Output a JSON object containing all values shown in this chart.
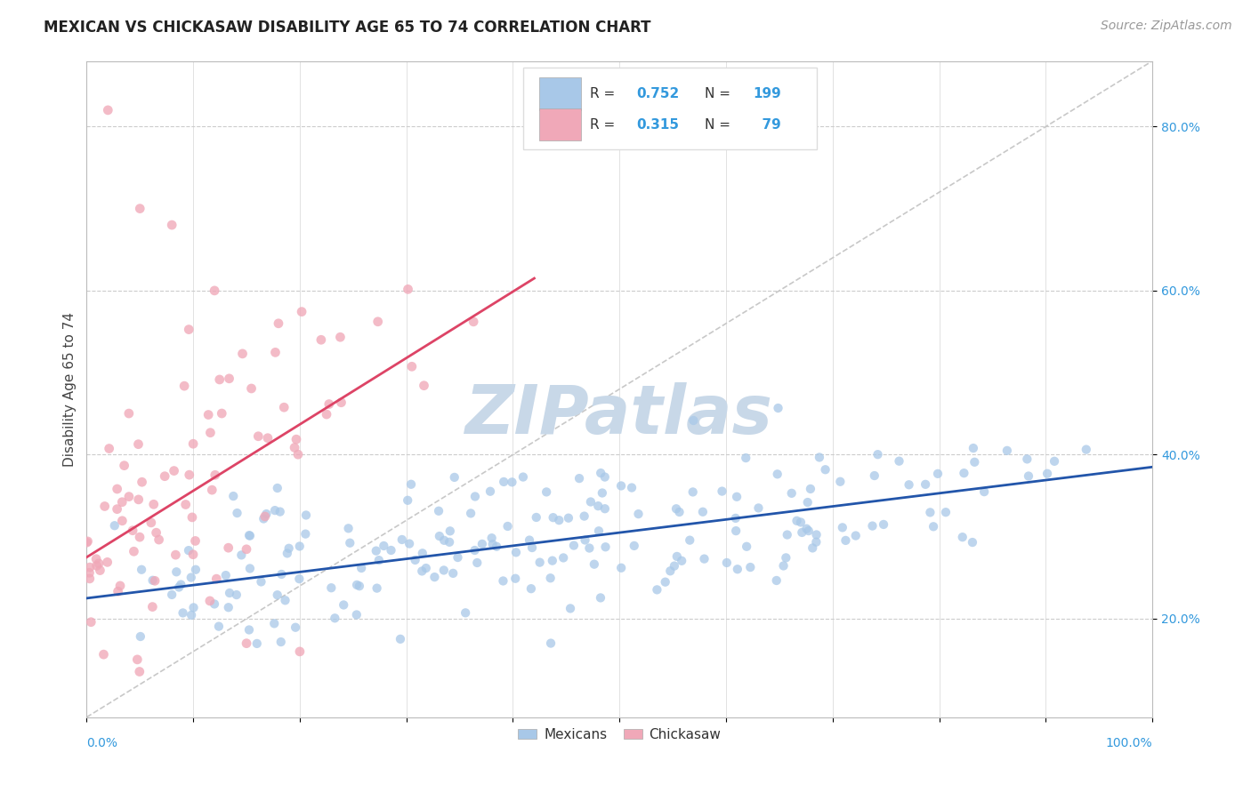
{
  "title": "MEXICAN VS CHICKASAW DISABILITY AGE 65 TO 74 CORRELATION CHART",
  "source": "Source: ZipAtlas.com",
  "ylabel": "Disability Age 65 to 74",
  "watermark": "ZIPatlas",
  "legend_label1": "Mexicans",
  "legend_label2": "Chickasaw",
  "blue_color": "#a8c8e8",
  "pink_color": "#f0a8b8",
  "blue_line_color": "#2255aa",
  "pink_line_color": "#dd4466",
  "diag_line_color": "#c8c8c8",
  "R_blue": 0.752,
  "N_blue": 199,
  "R_pink": 0.315,
  "N_pink": 79,
  "xmin": 0.0,
  "xmax": 1.0,
  "ymin": 0.08,
  "ymax": 0.88,
  "yticks": [
    0.2,
    0.4,
    0.6,
    0.8
  ],
  "title_fontsize": 12,
  "source_fontsize": 10,
  "axis_label_fontsize": 11,
  "tick_fontsize": 10,
  "watermark_fontsize": 55,
  "watermark_color": "#c8d8e8",
  "background_color": "#ffffff",
  "grid_color": "#cccccc"
}
